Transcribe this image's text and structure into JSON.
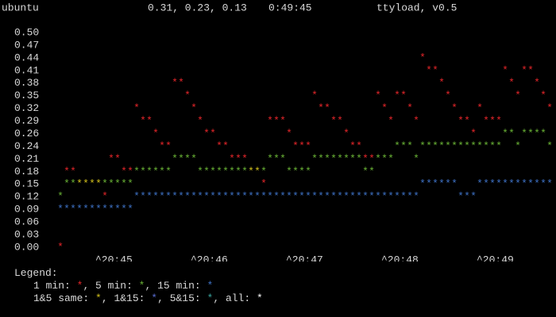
{
  "header": {
    "host": "ubuntu",
    "load": "0.31, 0.23, 0.13",
    "time": "0:49:45",
    "program": "ttyload, v0.5"
  },
  "chart_data": {
    "type": "ascii-load",
    "marker": "*",
    "yticks": [
      {
        "value": 0.5,
        "label": "0.50"
      },
      0.47,
      0.44,
      0.41,
      0.38,
      0.35,
      0.32,
      0.29,
      0.26,
      0.24,
      0.21,
      0.18,
      0.15,
      0.12,
      0.09,
      0.06,
      0.03,
      {
        "value": 0,
        "label": "0.00"
      }
    ],
    "ylim": [
      0,
      0.5
    ],
    "categories": [
      null,
      null,
      null,
      null,
      null,
      null,
      "^20:45",
      null,
      null,
      null,
      null,
      null,
      null,
      null,
      null,
      null,
      null,
      null,
      null,
      null,
      null,
      "^20:46",
      null,
      null,
      null,
      null,
      null,
      null,
      null,
      null,
      null,
      null,
      null,
      null,
      null,
      null,
      "^20:47",
      null,
      null,
      null,
      null,
      null,
      null,
      null,
      null,
      null,
      null,
      null,
      null,
      null,
      null,
      "^20:48",
      null,
      null,
      null,
      null,
      null,
      null,
      null,
      null,
      null,
      null,
      null,
      null,
      null,
      null,
      "^20:49",
      null,
      null,
      null,
      null,
      null,
      null,
      null,
      null,
      null,
      null,
      null
    ],
    "series": [
      {
        "name": "1 min",
        "color": "#e8262a",
        "values": [
          0,
          0.18,
          0.18,
          0.15,
          0.15,
          0.15,
          0.15,
          0.12,
          0.21,
          0.21,
          0.18,
          0.18,
          0.32,
          0.29,
          0.29,
          0.26,
          0.24,
          0.24,
          0.38,
          0.38,
          0.35,
          0.32,
          0.29,
          0.26,
          0.26,
          0.24,
          0.24,
          0.21,
          0.21,
          0.21,
          0.18,
          0.18,
          0.15,
          0.29,
          0.29,
          0.29,
          0.26,
          0.24,
          0.24,
          0.24,
          0.35,
          0.32,
          0.32,
          0.29,
          0.29,
          0.26,
          0.24,
          0.24,
          0.21,
          0.21,
          0.35,
          0.32,
          0.29,
          0.35,
          0.35,
          0.32,
          0.29,
          0.44,
          0.41,
          0.41,
          0.38,
          0.35,
          0.32,
          0.29,
          0.29,
          0.26,
          0.32,
          0.29,
          0.29,
          0.29,
          0.41,
          0.38,
          0.35,
          0.41,
          0.41,
          0.38,
          0.35,
          0.32
        ]
      },
      {
        "name": "5 min",
        "color": "#6bb536",
        "values": [
          0.12,
          0.15,
          0.15,
          0.15,
          0.15,
          0.15,
          0.15,
          0.15,
          0.15,
          0.15,
          0.15,
          0.15,
          0.18,
          0.18,
          0.18,
          0.18,
          0.18,
          0.18,
          0.21,
          0.21,
          0.21,
          0.21,
          0.18,
          0.18,
          0.18,
          0.18,
          0.18,
          0.18,
          0.18,
          0.18,
          0.18,
          0.18,
          0.18,
          0.21,
          0.21,
          0.21,
          0.18,
          0.18,
          0.18,
          0.18,
          0.21,
          0.21,
          0.21,
          0.21,
          0.21,
          0.21,
          0.21,
          0.21,
          0.18,
          0.18,
          0.21,
          0.21,
          0.21,
          0.24,
          0.24,
          0.24,
          0.21,
          0.24,
          0.24,
          0.24,
          0.24,
          0.24,
          0.24,
          0.24,
          0.24,
          0.24,
          0.24,
          0.24,
          0.24,
          0.24,
          0.26,
          0.26,
          0.24,
          0.26,
          0.26,
          0.26,
          0.26,
          0.24
        ]
      },
      {
        "name": "15 min",
        "color": "#3f73c8",
        "values": [
          0.09,
          0.09,
          0.09,
          0.09,
          0.09,
          0.09,
          0.09,
          0.09,
          0.09,
          0.09,
          0.09,
          0.09,
          0.12,
          0.12,
          0.12,
          0.12,
          0.12,
          0.12,
          0.12,
          0.12,
          0.12,
          0.12,
          0.12,
          0.12,
          0.12,
          0.12,
          0.12,
          0.12,
          0.12,
          0.12,
          0.12,
          0.12,
          0.12,
          0.12,
          0.12,
          0.12,
          0.12,
          0.12,
          0.12,
          0.12,
          0.12,
          0.12,
          0.12,
          0.12,
          0.12,
          0.12,
          0.12,
          0.12,
          0.12,
          0.12,
          0.12,
          0.12,
          0.12,
          0.12,
          0.12,
          0.12,
          0.12,
          0.15,
          0.15,
          0.15,
          0.15,
          0.15,
          0.15,
          0.12,
          0.12,
          0.12,
          0.15,
          0.15,
          0.15,
          0.15,
          0.15,
          0.15,
          0.15,
          0.15,
          0.15,
          0.15,
          0.15,
          0.15
        ]
      }
    ],
    "legend_title": "Legend:",
    "combos": [
      {
        "name": "1&5 same",
        "color": "#d4c21c"
      },
      {
        "name": "1&15",
        "color": "#5a6fd8"
      },
      {
        "name": "5&15",
        "color": "#3aa7a0"
      },
      {
        "name": "all",
        "color": "#ffffff"
      }
    ]
  }
}
